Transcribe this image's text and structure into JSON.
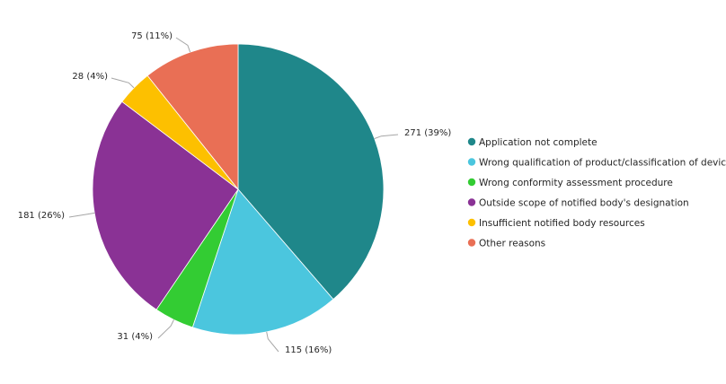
{
  "chart_data": {
    "type": "pie",
    "title": "",
    "legend_position": "right",
    "slices": [
      {
        "label": "Application not complete",
        "value": 271,
        "data_label": "271 (39%)",
        "color": "#1f878a"
      },
      {
        "label": "Wrong qualification of product/classification of device",
        "value": 115,
        "data_label": "115 (16%)",
        "color": "#4bc6de"
      },
      {
        "label": "Wrong conformity assessment procedure",
        "value": 31,
        "data_label": "31 (4%)",
        "color": "#33cc33"
      },
      {
        "label": "Outside scope of notified body's designation",
        "value": 181,
        "data_label": "181 (26%)",
        "color": "#8a3295"
      },
      {
        "label": "Insufficient notified body resources",
        "value": 28,
        "data_label": "28 (4%)",
        "color": "#fdc000"
      },
      {
        "label": "Other reasons",
        "value": 75,
        "data_label": "75 (11%)",
        "color": "#e96f55"
      }
    ]
  }
}
